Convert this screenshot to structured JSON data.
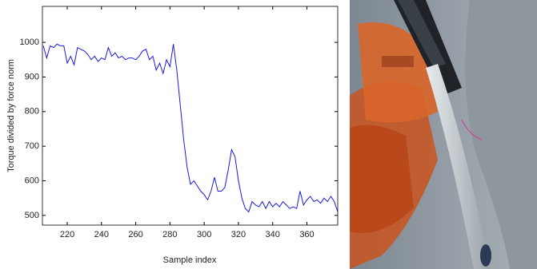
{
  "chart_data": {
    "type": "line",
    "xlabel": "Sample index",
    "ylabel": "Torque divided by force norm",
    "x": [
      206,
      208,
      210,
      212,
      214,
      216,
      218,
      220,
      222,
      224,
      226,
      228,
      230,
      232,
      234,
      236,
      238,
      240,
      242,
      244,
      246,
      248,
      250,
      252,
      254,
      256,
      258,
      260,
      262,
      264,
      266,
      268,
      270,
      272,
      274,
      276,
      278,
      280,
      282,
      284,
      286,
      288,
      290,
      292,
      294,
      296,
      298,
      300,
      302,
      304,
      306,
      308,
      310,
      312,
      314,
      316,
      318,
      320,
      322,
      324,
      326,
      328,
      330,
      332,
      334,
      336,
      338,
      340,
      342,
      344,
      346,
      348,
      350,
      352,
      354,
      356,
      358,
      360,
      362,
      364,
      366,
      368,
      370,
      372,
      374,
      376,
      378
    ],
    "series": [
      {
        "color": "#1a1adf",
        "values": [
          990,
          955,
          990,
          985,
          995,
          990,
          990,
          940,
          960,
          935,
          985,
          980,
          975,
          965,
          950,
          960,
          945,
          955,
          950,
          985,
          960,
          970,
          955,
          960,
          950,
          955,
          955,
          950,
          960,
          975,
          980,
          950,
          960,
          920,
          940,
          910,
          950,
          930,
          995,
          920,
          820,
          720,
          640,
          590,
          600,
          585,
          570,
          560,
          545,
          570,
          610,
          570,
          570,
          580,
          630,
          690,
          670,
          600,
          550,
          520,
          510,
          540,
          530,
          525,
          540,
          520,
          540,
          525,
          535,
          525,
          540,
          530,
          520,
          525,
          520,
          570,
          530,
          545,
          555,
          540,
          545,
          535,
          550,
          540,
          555,
          540,
          510
        ]
      }
    ],
    "xlim": [
      205.5,
      378
    ],
    "ylim": [
      472,
      1104
    ],
    "xticks": [
      220,
      240,
      260,
      280,
      300,
      320,
      340,
      360
    ],
    "yticks": [
      500,
      600,
      700,
      800,
      900,
      1000
    ]
  }
}
